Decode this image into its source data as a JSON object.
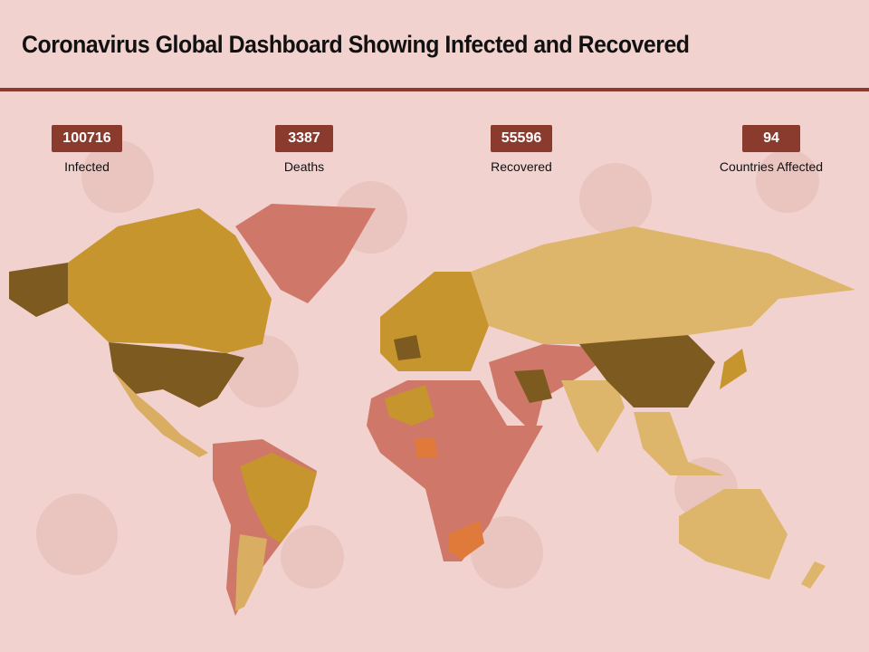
{
  "header": {
    "title": "Coronavirus Global Dashboard Showing Infected and Recovered"
  },
  "stats": [
    {
      "value": 100716,
      "label": "Infected"
    },
    {
      "value": 3387,
      "label": "Deaths"
    },
    {
      "value": 55596,
      "label": "Recovered"
    },
    {
      "value": 94,
      "label": "Countries Affected"
    }
  ]
}
